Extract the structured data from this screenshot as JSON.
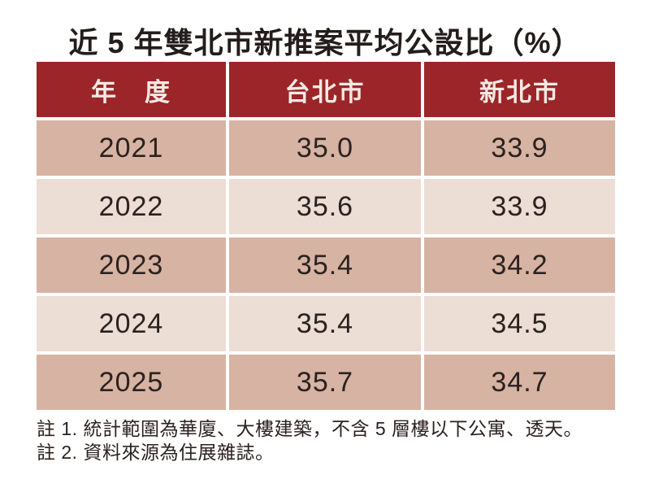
{
  "title": "近 5 年雙北市新推案平均公設比（%）",
  "table": {
    "columns": [
      "年　度",
      "台北市",
      "新北市"
    ],
    "rows": [
      [
        "2021",
        "35.0",
        "33.9"
      ],
      [
        "2022",
        "35.6",
        "33.9"
      ],
      [
        "2023",
        "35.4",
        "34.2"
      ],
      [
        "2024",
        "35.4",
        "34.5"
      ],
      [
        "2025",
        "35.7",
        "34.7"
      ]
    ]
  },
  "notes": [
    "註 1. 統計範圍為華廈、大樓建築，不含 5 層樓以下公寓、透天。",
    "註 2. 資料來源為住展雜誌。"
  ],
  "colors": {
    "header-bg": "#9B2528",
    "row-dark": "#D7B3A3",
    "row-light": "#ECDDD5",
    "header-text": "#F4E9E3",
    "body-text": "#2B2220",
    "title-text": "#231D1B"
  }
}
